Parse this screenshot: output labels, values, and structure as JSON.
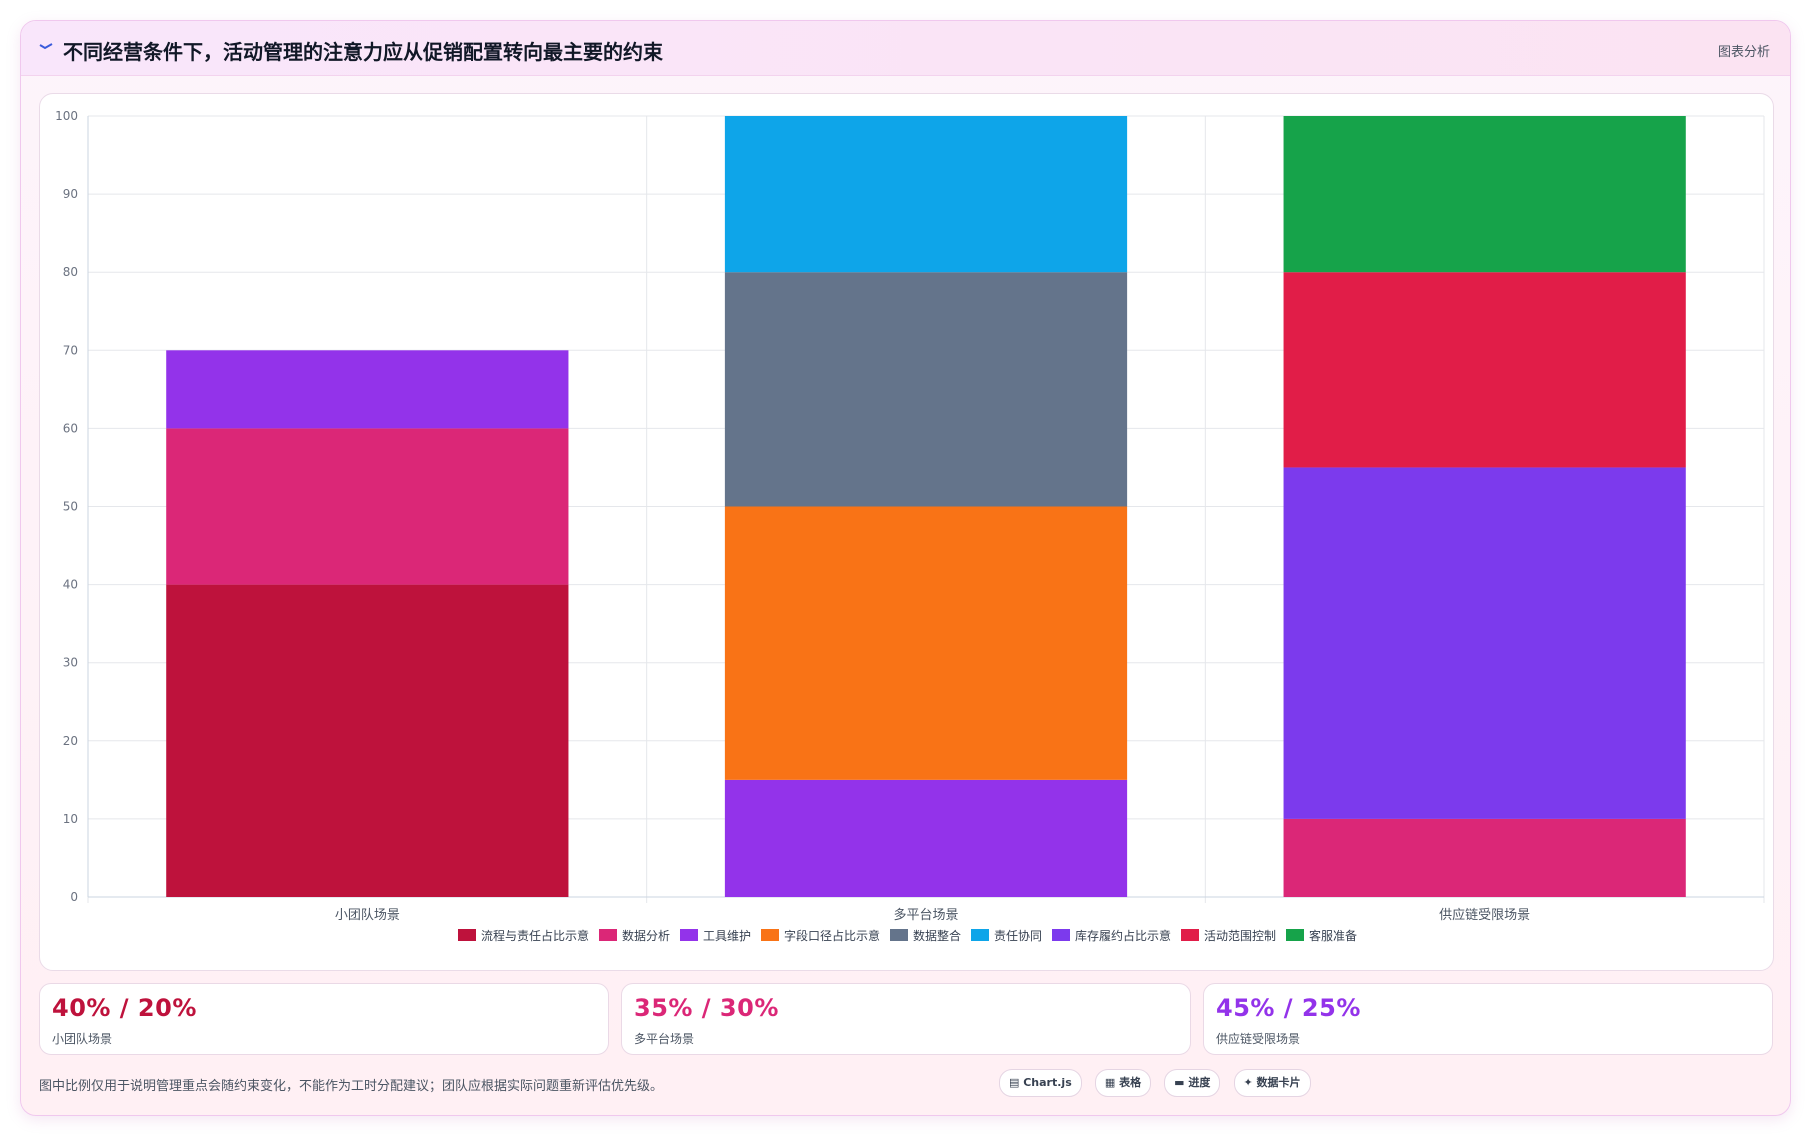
{
  "header": {
    "icon": "trend-icon",
    "title": "不同经营条件下，活动管理的注意力应从促销配置转向最主要的约束",
    "action_label": "图表分析"
  },
  "chart_data": {
    "type": "bar",
    "stacked": true,
    "categories": [
      "小团队场景",
      "多平台场景",
      "供应链受限场景"
    ],
    "ylim": [
      0,
      100
    ],
    "yticks": [
      0,
      10,
      20,
      30,
      40,
      50,
      60,
      70,
      80,
      90,
      100
    ],
    "grid": true,
    "legend_position": "bottom",
    "series": [
      {
        "name": "流程与责任占比示意",
        "color": "#be123c",
        "values": [
          40,
          0,
          0
        ]
      },
      {
        "name": "数据分析",
        "color": "#db2777",
        "values": [
          20,
          0,
          10
        ]
      },
      {
        "name": "工具维护",
        "color": "#9333ea",
        "values": [
          10,
          15,
          0
        ]
      },
      {
        "name": "字段口径占比示意",
        "color": "#f97316",
        "values": [
          0,
          35,
          0
        ]
      },
      {
        "name": "数据整合",
        "color": "#64748b",
        "values": [
          0,
          30,
          0
        ]
      },
      {
        "name": "责任协同",
        "color": "#0ea5e9",
        "values": [
          0,
          20,
          0
        ]
      },
      {
        "name": "库存履约占比示意",
        "color": "#7c3aed",
        "values": [
          0,
          0,
          45
        ]
      },
      {
        "name": "活动范围控制",
        "color": "#e11d48",
        "values": [
          0,
          0,
          25
        ]
      },
      {
        "name": "客服准备",
        "color": "#16a34a",
        "values": [
          0,
          0,
          20
        ]
      }
    ]
  },
  "stats": [
    {
      "value": "40% / 20%",
      "label": "小团队场景",
      "color": "#be123c"
    },
    {
      "value": "35% / 30%",
      "label": "多平台场景",
      "color": "#db2777"
    },
    {
      "value": "45% / 25%",
      "label": "供应链受限场景",
      "color": "#9333ea"
    }
  ],
  "footnote": "图中比例仅用于说明管理重点会随约束变化，不能作为工时分配建议；团队应根据实际问题重新评估优先级。",
  "chips": [
    {
      "label": "Chart.js",
      "icon": "chart-icon"
    },
    {
      "label": "表格",
      "icon": "table-icon"
    },
    {
      "label": "进度",
      "icon": "progress-icon"
    },
    {
      "label": "数据卡片",
      "icon": "sparkle-icon"
    }
  ]
}
